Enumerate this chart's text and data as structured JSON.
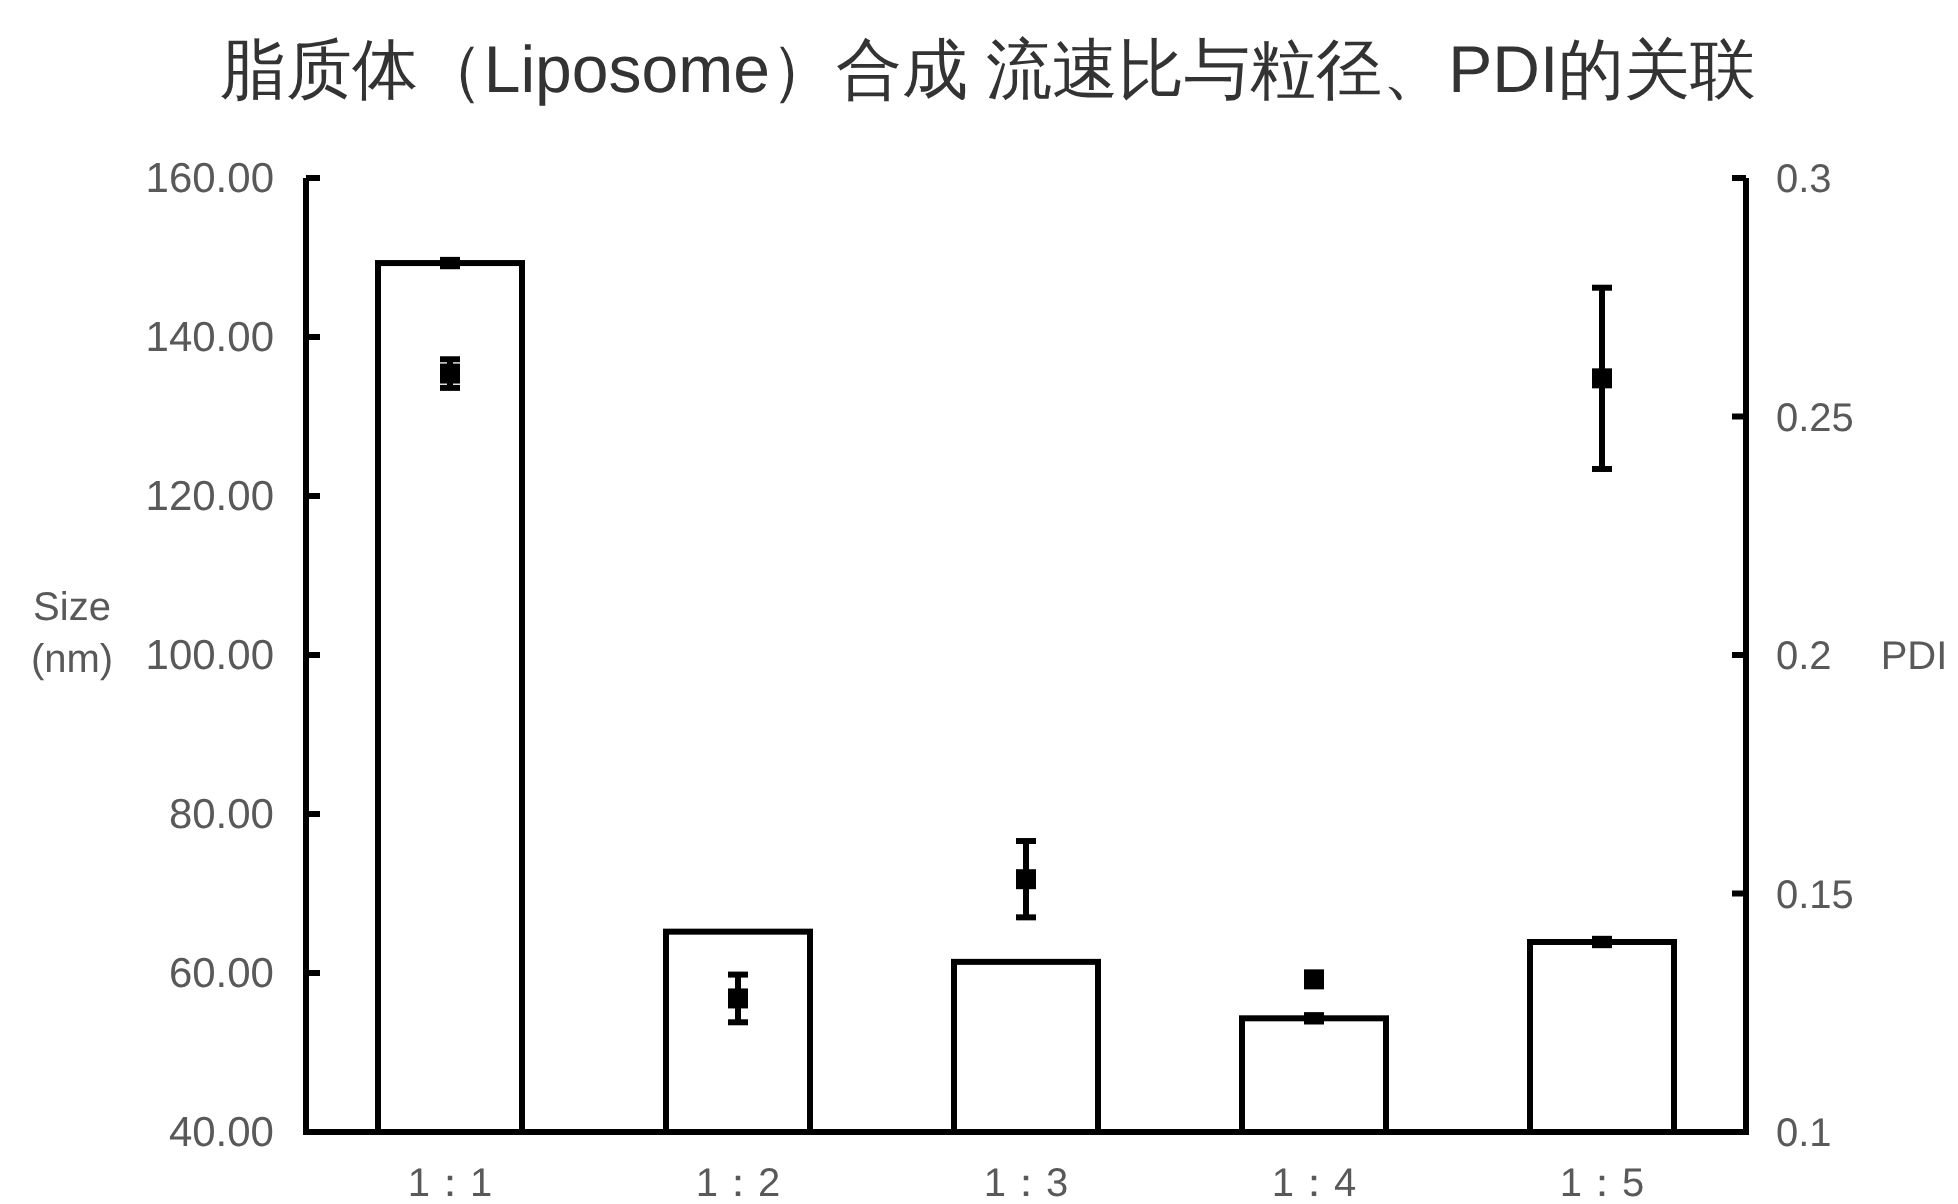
{
  "chart_data": {
    "type": "bar",
    "title": "脂质体（Liposome）合成 流速比与粒径、PDI的关联",
    "ylabel": "Size (nm)",
    "y2label": "PDI",
    "categories": [
      "1：1",
      "1：2",
      "1：3",
      "1：4",
      "1：5"
    ],
    "series": [
      {
        "color": "#ffffff",
        "values": [
          149.3,
          65.2,
          61.4,
          54.3,
          63.9
        ],
        "errors": [
          0.4,
          null,
          null,
          0.4,
          0.4
        ]
      },
      {
        "type": "scatter",
        "axis": "y2",
        "color": "#000000",
        "values": [
          0.259,
          0.128,
          0.153,
          0.132,
          0.258
        ],
        "errors": [
          0.003,
          0.005,
          0.008,
          null,
          0.019
        ]
      }
    ],
    "ylim": [
      40,
      160
    ],
    "yticks": [
      {
        "value": 40,
        "label": "40.00"
      },
      {
        "value": 60,
        "label": "60.00"
      },
      {
        "value": 80,
        "label": "80.00"
      },
      {
        "value": 100,
        "label": "100.00"
      },
      {
        "value": 120,
        "label": "120.00"
      },
      {
        "value": 140,
        "label": "140.00"
      },
      {
        "value": 160,
        "label": "160.00"
      }
    ],
    "y2lim": [
      0.1,
      0.3
    ],
    "y2ticks": [
      0.1,
      0.15,
      0.2,
      0.25,
      0.3
    ],
    "marker": "square"
  }
}
